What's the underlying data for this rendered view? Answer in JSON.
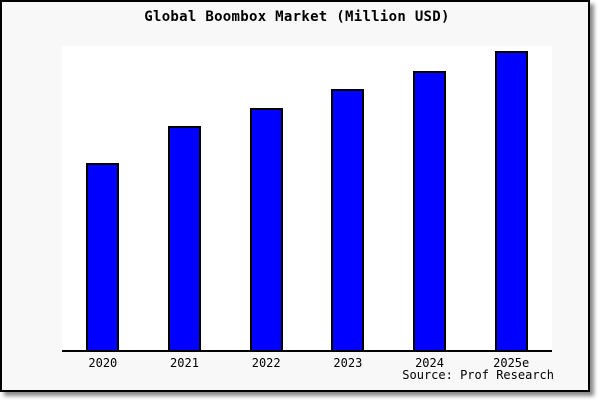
{
  "window": {
    "background_color": "#f8f8f8",
    "plot_background_color": "#ffffff",
    "border_color": "#000000",
    "text_color": "#000000"
  },
  "chart_data": {
    "type": "bar",
    "title": "Global Boombox Market (Million USD)",
    "categories": [
      "2020",
      "2021",
      "2022",
      "2023",
      "2024",
      "2025e"
    ],
    "values_pct_of_axis_max": [
      61.5,
      73.7,
      79.6,
      85.9,
      91.8,
      98.4
    ],
    "unit": "Million USD",
    "xlabel": "",
    "ylabel": "",
    "y_axis_labels_visible": false,
    "grid": false,
    "legend": false,
    "bar_color": "#0000ff",
    "bar_border_color": "#000000",
    "source_note": "Source: Prof Research"
  }
}
